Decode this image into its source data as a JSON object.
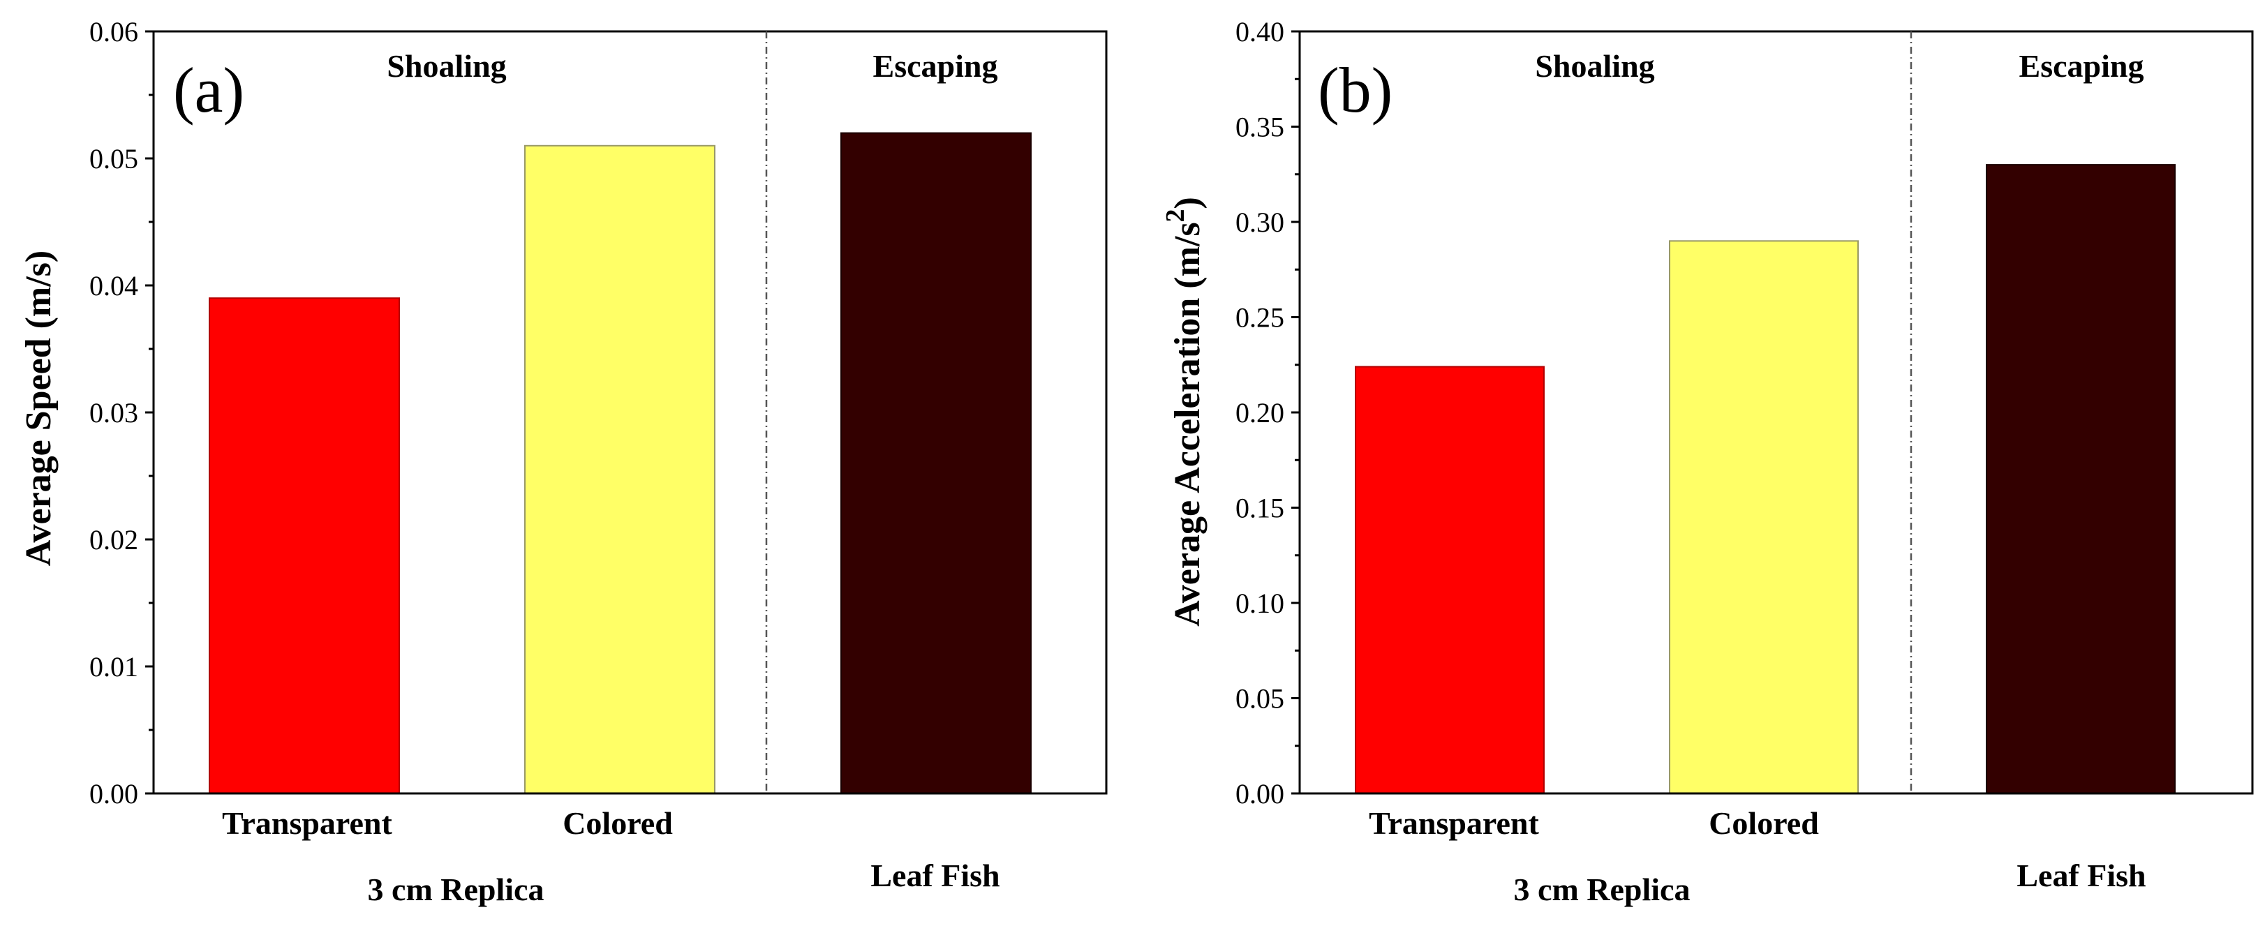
{
  "chart_data": [
    {
      "type": "bar",
      "panel_label": "(a)",
      "ylabel": "Average Speed (m/s)",
      "ylim": [
        0,
        0.06
      ],
      "yticks": [
        "0.00",
        "0.01",
        "0.02",
        "0.03",
        "0.04",
        "0.05",
        "0.06"
      ],
      "categories": [
        "Transparent",
        "Colored",
        ""
      ],
      "values": [
        0.039,
        0.051,
        0.052
      ],
      "colors": [
        "#ff0000",
        "#ffff66",
        "#330000"
      ],
      "groups": [
        {
          "name": "Shoaling",
          "label": "3 cm Replica"
        },
        {
          "name": "Escaping",
          "label": "Leaf Fish"
        }
      ]
    },
    {
      "type": "bar",
      "panel_label": "(b)",
      "ylabel": "Average Acceleration (m/s",
      "ylabel_sup": "2",
      "ylabel_end": ")",
      "ylim": [
        0,
        0.4
      ],
      "yticks": [
        "0.00",
        "0.05",
        "0.10",
        "0.15",
        "0.20",
        "0.25",
        "0.30",
        "0.35",
        "0.40"
      ],
      "categories": [
        "Transparent",
        "Colored",
        ""
      ],
      "values": [
        0.224,
        0.29,
        0.33
      ],
      "colors": [
        "#ff0000",
        "#ffff66",
        "#330000"
      ],
      "groups": [
        {
          "name": "Shoaling",
          "label": "3 cm Replica"
        },
        {
          "name": "Escaping",
          "label": "Leaf Fish"
        }
      ]
    }
  ]
}
